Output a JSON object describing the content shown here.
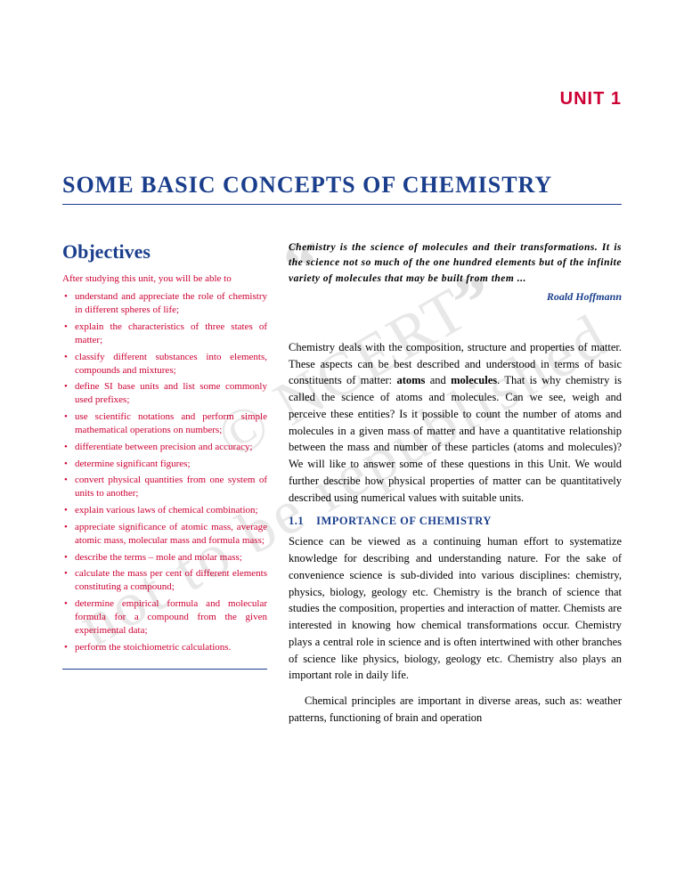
{
  "unit_label": "UNIT 1",
  "chapter_title": "SOME BASIC CONCEPTS OF CHEMISTRY",
  "watermarks": {
    "wm1": "© NCERT",
    "wm2": "not to be republished"
  },
  "objectives": {
    "heading": "Objectives",
    "intro": "After studying this unit, you will be able to",
    "items": [
      "understand and appreciate the role of chemistry in different spheres of life;",
      "explain the characteristics of three states of matter;",
      "classify different substances into elements, compounds and mixtures;",
      "define SI base units and list some commonly used prefixes;",
      "use scientific notations and perform simple mathematical operations on numbers;",
      "differentiate between precision and accuracy;",
      "determine significant figures;",
      "convert physical quantities from one system of units to another;",
      "explain various laws of chemical combination;",
      "appreciate significance of atomic mass, average atomic mass, molecular mass and formula mass;",
      "describe the terms – mole and molar mass;",
      "calculate the mass per cent of different elements constituting a compound;",
      "determine empirical formula and molecular formula for a compound from the given experimental data;",
      "perform the stoichiometric calculations."
    ]
  },
  "quote": {
    "text": "Chemistry is the science of molecules and their transformations. It is the science not so much of the one hundred elements but of the infinite variety of molecules that may be built from them ...",
    "author": "Roald Hoffmann"
  },
  "intro_para_pre": "Chemistry deals with the composition, structure and properties of matter. These aspects can be best described and understood in terms of basic constituents of matter: ",
  "intro_bold1": "atoms",
  "intro_mid": " and ",
  "intro_bold2": "molecules",
  "intro_para_post": ".  That is why chemistry is called the science of atoms and molecules.  Can we see, weigh and perceive these entities? Is it possible to count the number of atoms and molecules in a given mass of matter and have a quantitative relationship between the mass and number of these particles (atoms and molecules)? We will like to answer some of these questions in this Unit. We would further describe how physical properties of matter can be quantitatively described using numerical values with suitable units.",
  "section": {
    "num": "1.1",
    "title": "IMPORTANCE OF CHEMISTRY"
  },
  "section_para1": "Science can be viewed as a continuing human effort to systematize knowledge for describing and understanding nature.  For the sake of convenience science is sub-divided into various disciplines: chemistry, physics, biology, geology etc. Chemistry is the branch of science that studies the composition, properties and interaction of matter. Chemists are interested in knowing how chemical transformations occur.  Chemistry plays a central role in science and is often intertwined with other branches of science like physics, biology, geology etc.  Chemistry also plays an important role in daily life.",
  "section_para2": "Chemical principles are important in diverse areas, such as: weather patterns, functioning of brain and operation"
}
